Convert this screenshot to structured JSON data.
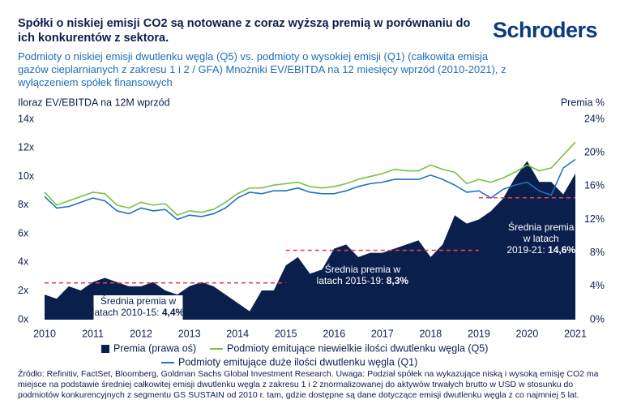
{
  "chart_data": {
    "type": "line",
    "title": "Spółki o niskiej emisji CO2 są notowane z coraz wyższą premią w porównaniu do ich konkurentów z sektora.",
    "brand": "Schroders",
    "subtitle": "Podmioty o niskiej emisji dwutlenku węgla (Q5) vs. podmioty o wysokiej emisji (Q1) (całkowita emisja gazów cieplarnianych z zakresu 1 i 2 / GFA) Mnożniki EV/EBITDA na 12 miesięcy wprzód (2010-2021), z wyłączeniem spółek finansowych",
    "y_label": "Iloraz EV/EBITDA na 12M wprzód",
    "y2_label": "Premia %",
    "footnote": "Źródło: Refinitiv, FactSet, Bloomberg, Goldman Sachs Global Investment Research. Uwaga: Podział spółek na wykazujące niską i wysoką emisję CO2 ma miejsce na podstawie średniej całkowitej emisji dwutlenku węgla z zakresu 1 i 2 znormalizowanej do aktywów trwałych brutto w USD w stosunku do podmiotów konkurencyjnych z segmentu GS SUSTAIN od 2010 r. tam, gdzie dostępne są dane dotyczące emisji dwutlenku węgla z co najmniej 5 lat.",
    "x": [
      2010.0,
      2010.25,
      2010.5,
      2010.75,
      2011.0,
      2011.25,
      2011.5,
      2011.75,
      2012.0,
      2012.25,
      2012.5,
      2012.75,
      2013.0,
      2013.25,
      2013.5,
      2013.75,
      2014.0,
      2014.25,
      2014.5,
      2014.75,
      2015.0,
      2015.25,
      2015.5,
      2015.75,
      2016.0,
      2016.25,
      2016.5,
      2016.75,
      2017.0,
      2017.25,
      2017.5,
      2017.75,
      2018.0,
      2018.25,
      2018.5,
      2018.75,
      2019.0,
      2019.25,
      2019.5,
      2019.75,
      2020.0,
      2020.25,
      2020.5,
      2020.75,
      2021.0
    ],
    "xlim": [
      2010,
      2021
    ],
    "xticks": [
      2010,
      2011,
      2012,
      2013,
      2014,
      2015,
      2016,
      2017,
      2018,
      2019,
      2020,
      2021
    ],
    "ylim": [
      0,
      14
    ],
    "yticks": [
      {
        "value": 0,
        "label": "0x"
      },
      {
        "value": 2,
        "label": "2x"
      },
      {
        "value": 4,
        "label": "4x"
      },
      {
        "value": 6,
        "label": "6x"
      },
      {
        "value": 8,
        "label": "8x"
      },
      {
        "value": 10,
        "label": "10x"
      },
      {
        "value": 12,
        "label": "12x"
      },
      {
        "value": 14,
        "label": "14x"
      }
    ],
    "y2lim": [
      0,
      24
    ],
    "y2ticks": [
      {
        "value": 0,
        "label": "0%"
      },
      {
        "value": 4,
        "label": "4%"
      },
      {
        "value": 8,
        "label": "8%"
      },
      {
        "value": 12,
        "label": "12%"
      },
      {
        "value": 16,
        "label": "16%"
      },
      {
        "value": 20,
        "label": "20%"
      },
      {
        "value": 24,
        "label": "24%"
      }
    ],
    "series": [
      {
        "name": "Premia (prawa oś)",
        "type": "area",
        "axis": "y2",
        "color": "#0b1f4d",
        "values": [
          3.0,
          2.5,
          4.0,
          3.5,
          4.5,
          5.0,
          4.5,
          4.0,
          4.0,
          4.5,
          3.5,
          3.0,
          4.0,
          4.5,
          4.0,
          3.0,
          2.0,
          1.0,
          3.5,
          3.5,
          6.5,
          7.5,
          5.5,
          6.0,
          8.5,
          9.0,
          7.5,
          8.0,
          8.0,
          8.5,
          9.0,
          9.5,
          7.5,
          9.0,
          12.5,
          11.5,
          12.0,
          13.0,
          14.5,
          17.0,
          19.0,
          16.5,
          16.5,
          15.0,
          17.5
        ]
      },
      {
        "name": "Podmioty emitujące niewielkie ilości dwutlenku węgla (Q5)",
        "type": "line",
        "color": "#7ac143",
        "values": [
          8.9,
          8.0,
          8.3,
          8.6,
          8.9,
          8.8,
          8.0,
          7.8,
          8.2,
          8.0,
          8.1,
          7.3,
          7.6,
          7.5,
          7.7,
          8.2,
          8.8,
          9.2,
          9.2,
          9.4,
          9.5,
          9.6,
          9.3,
          9.2,
          9.3,
          9.5,
          9.8,
          10.0,
          10.2,
          10.5,
          10.4,
          10.4,
          10.8,
          10.5,
          10.3,
          9.5,
          9.8,
          9.6,
          9.9,
          10.3,
          10.8,
          10.4,
          10.6,
          11.5,
          12.4
        ]
      },
      {
        "name": "Podmioty emitujące duże ilości dwutlenku węgla (Q1)",
        "type": "line",
        "color": "#1e73be",
        "values": [
          8.6,
          7.8,
          7.9,
          8.2,
          8.5,
          8.3,
          7.6,
          7.4,
          7.8,
          7.6,
          7.7,
          7.0,
          7.3,
          7.2,
          7.4,
          7.8,
          8.5,
          8.9,
          8.8,
          9.0,
          9.0,
          9.2,
          8.9,
          8.8,
          8.8,
          9.0,
          9.3,
          9.5,
          9.6,
          9.8,
          9.8,
          9.8,
          10.1,
          9.8,
          9.4,
          8.9,
          9.0,
          8.5,
          9.1,
          9.4,
          9.6,
          9.0,
          8.7,
          10.6,
          11.2
        ]
      }
    ],
    "reference_lines": [
      {
        "value": 4.4,
        "label": "4,4%",
        "x": [
          2010,
          2015
        ],
        "color": "#e0435a",
        "text": [
          "Średnia premia w",
          "latach 2010-15:"
        ]
      },
      {
        "value": 8.3,
        "label": "8,3%",
        "x": [
          2015,
          2019
        ],
        "color": "#e0435a",
        "text": [
          "Średnia premia w",
          "latach 2015-19:"
        ]
      },
      {
        "value": 14.6,
        "label": "14,6%",
        "x": [
          2019,
          2021
        ],
        "color": "#e0435a",
        "text": [
          "Średnia premia",
          "w latach",
          "2019-21:"
        ]
      }
    ]
  }
}
